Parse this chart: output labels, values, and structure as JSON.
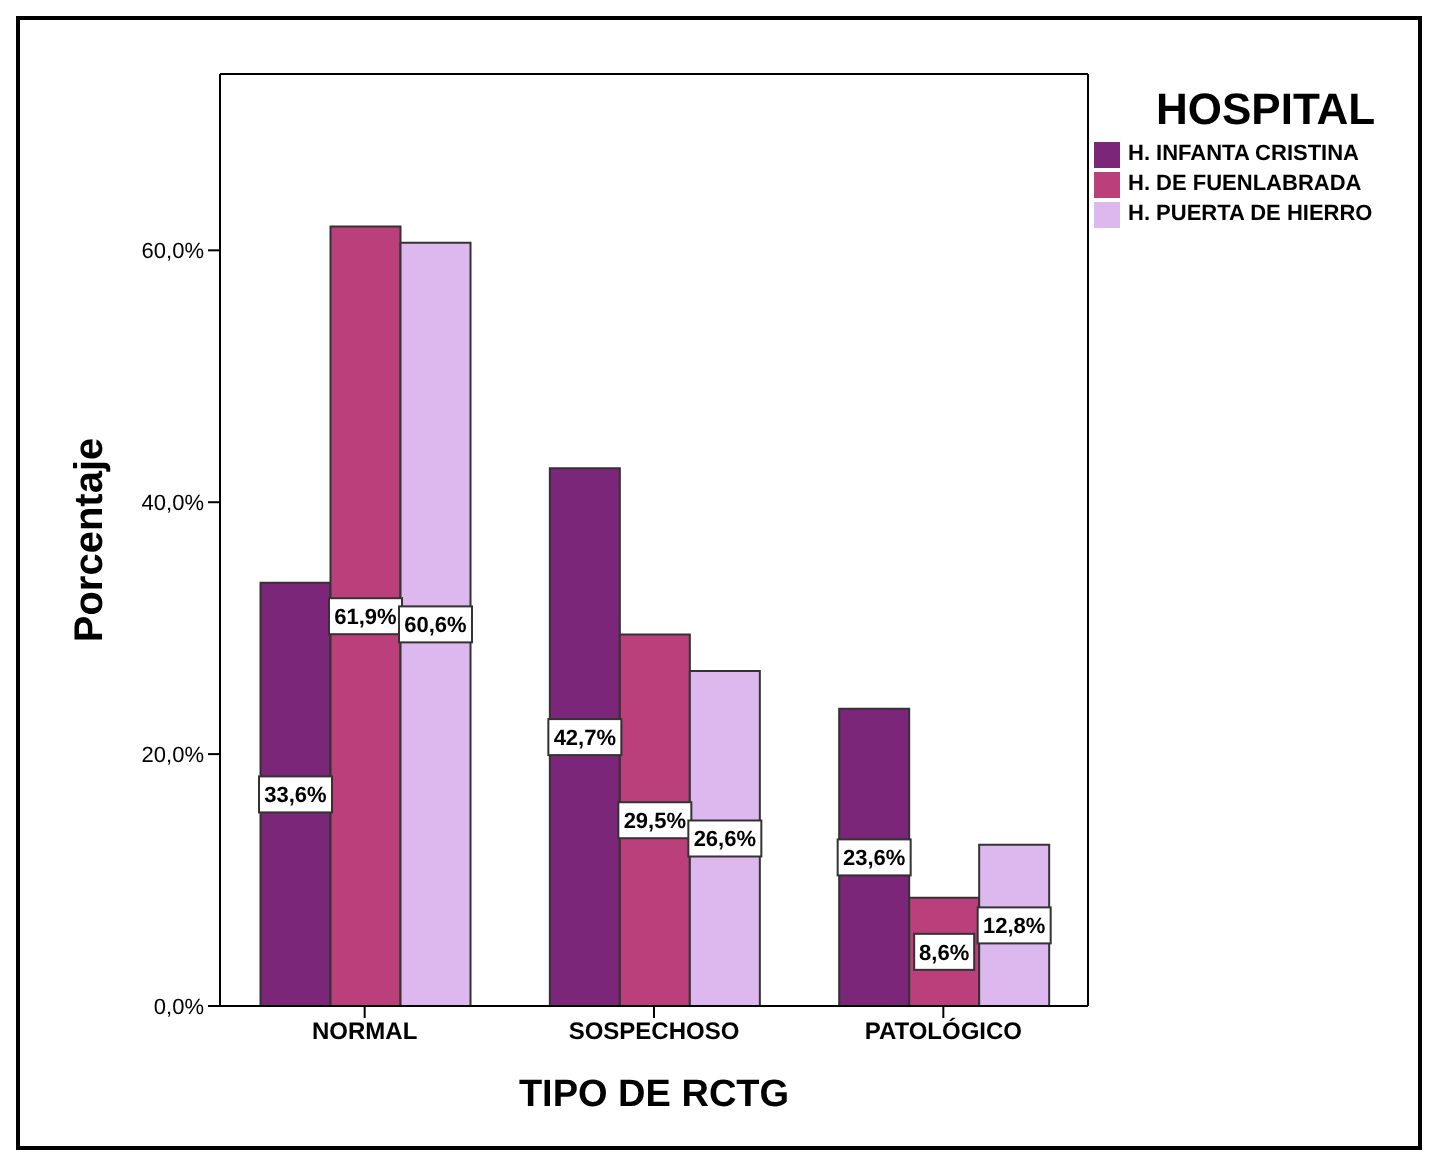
{
  "chart_data": {
    "type": "bar",
    "xlabel": "TIPO DE RCTG",
    "ylabel": "Porcentaje",
    "legend_title": "HOSPITAL",
    "legend": "right",
    "categories": [
      "NORMAL",
      "SOSPECHOSO",
      "PATOLÓGICO"
    ],
    "series": [
      {
        "name": "H. INFANTA CRISTINA",
        "color": "#7b2678",
        "values": [
          33.6,
          42.7,
          23.6
        ],
        "value_labels": [
          "33,6%",
          "42,7%",
          "23,6%"
        ]
      },
      {
        "name": "H. DE FUENLABRADA",
        "color": "#bb3f7b",
        "values": [
          61.9,
          29.5,
          8.6
        ],
        "value_labels": [
          "61,9%",
          "29,5%",
          "8,6%"
        ]
      },
      {
        "name": "H. PUERTA DE HIERRO",
        "color": "#dcb8ef",
        "values": [
          60.6,
          26.6,
          12.8
        ],
        "value_labels": [
          "60,6%",
          "26,6%",
          "12,8%"
        ]
      }
    ],
    "ylim": [
      0,
      74
    ],
    "yticks": [
      {
        "value": 0,
        "label": "0,0%"
      },
      {
        "value": 20,
        "label": "20,0%"
      },
      {
        "value": 40,
        "label": "40,0%"
      },
      {
        "value": 60,
        "label": "60,0%"
      }
    ],
    "grid": false
  }
}
